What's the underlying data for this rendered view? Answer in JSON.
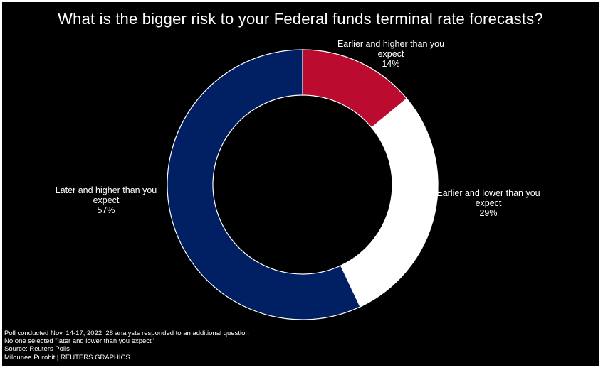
{
  "colors": {
    "background": "#000000",
    "text": "#ffffff",
    "earlier_higher": "#bb0b2f",
    "earlier_lower": "#ffffff",
    "later_higher": "#002063"
  },
  "chart_data": {
    "type": "pie",
    "donut": true,
    "title": "What is the bigger risk to your Federal funds terminal rate forecasts?",
    "slices": [
      {
        "label_lines": [
          "Earlier and higher than you",
          "expect"
        ],
        "value_label": "14%",
        "value": 14,
        "color": "#bb0b2f"
      },
      {
        "label_lines": [
          "Earlier and lower than you",
          "expect"
        ],
        "value_label": "29%",
        "value": 29,
        "color": "#ffffff"
      },
      {
        "label_lines": [
          "Later and higher than you",
          "expect"
        ],
        "value_label": "57%",
        "value": 57,
        "color": "#002063"
      }
    ]
  },
  "footnotes": [
    "Poll conducted Nov. 14-17, 2022. 28 analysts responded to an additional question",
    "No one selected \"later and lower than you expect\"",
    "Source: Reuters Polls",
    "Milounee Purohit | REUTERS GRAPHICS"
  ]
}
